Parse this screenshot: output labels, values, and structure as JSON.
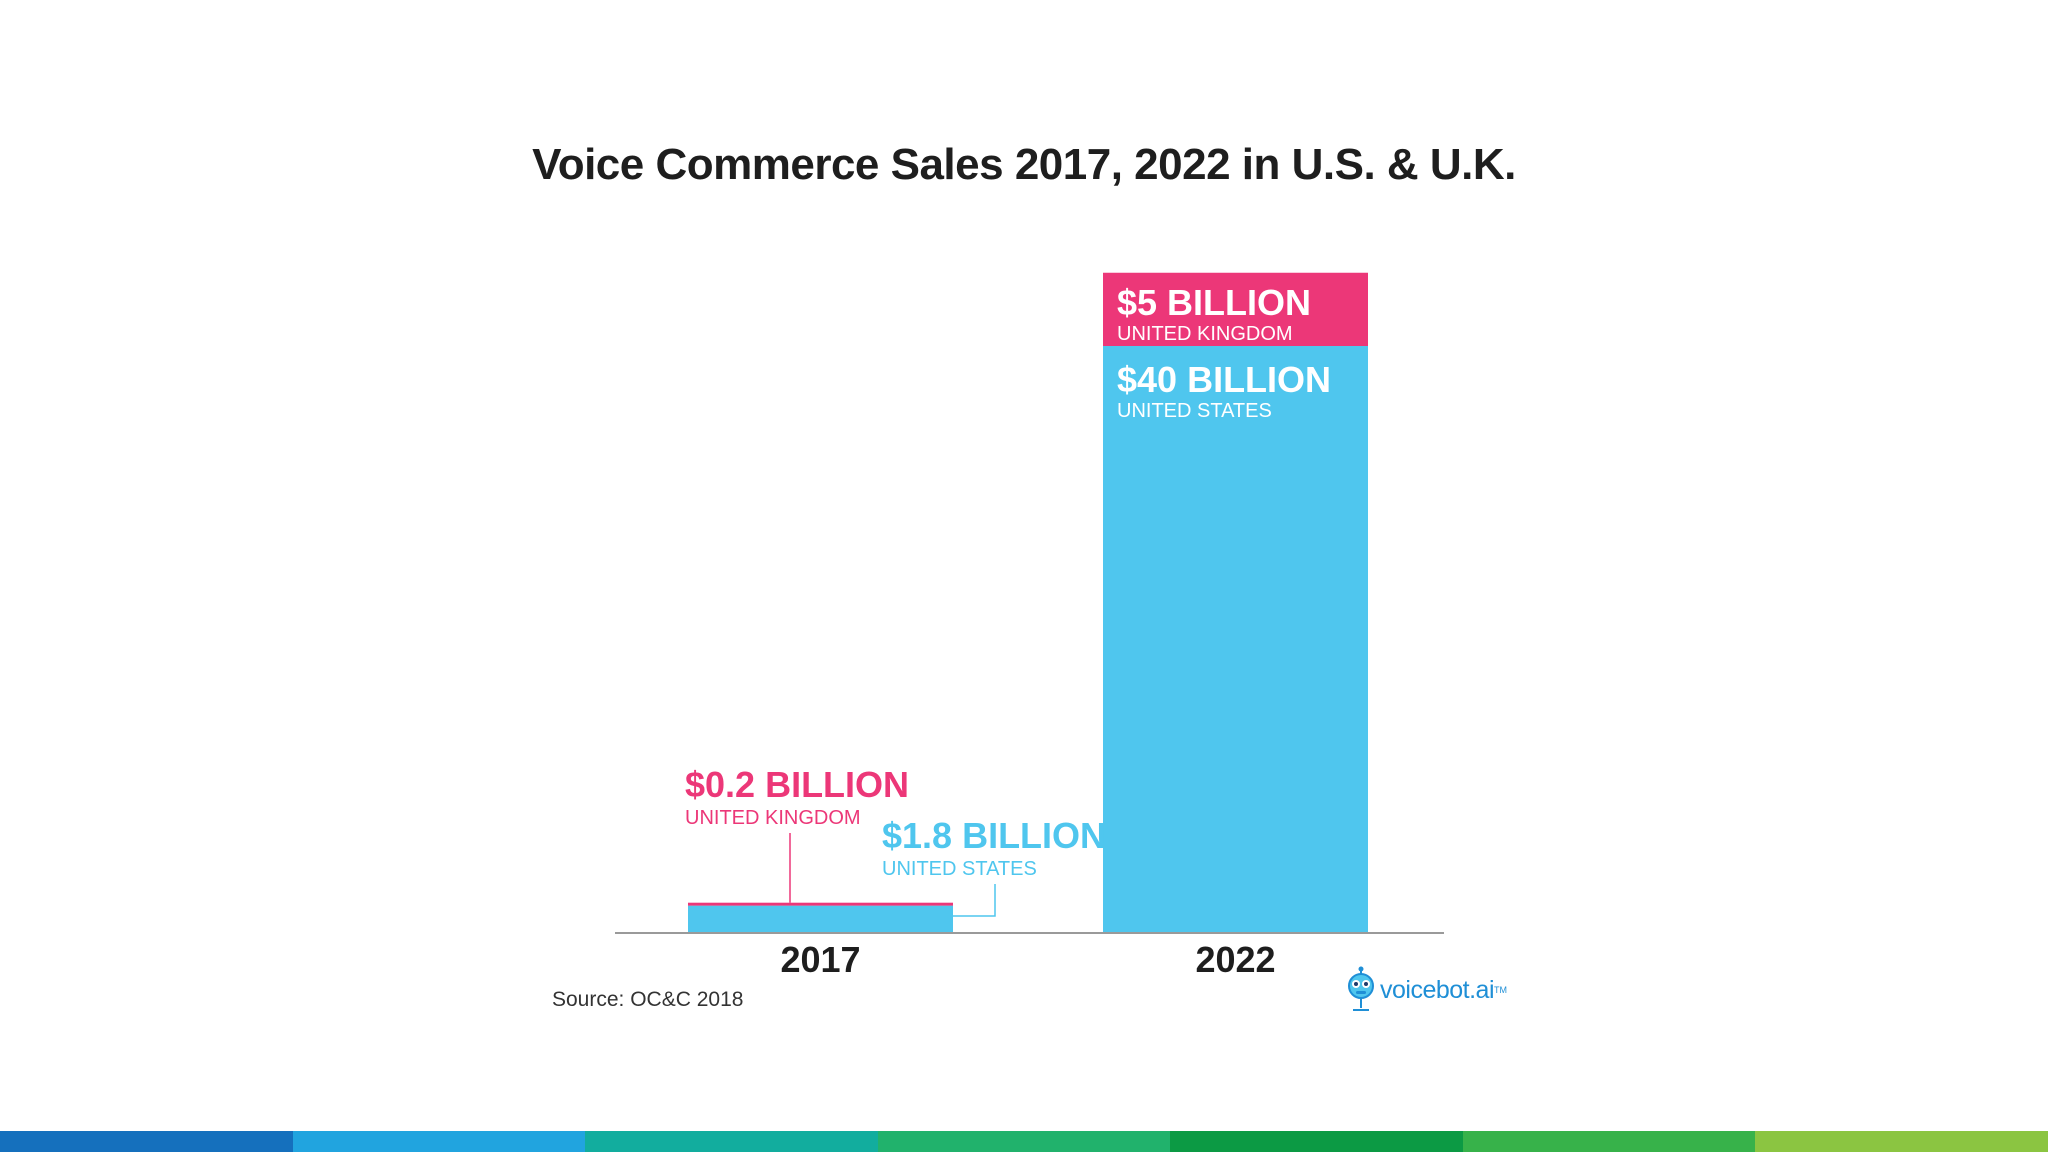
{
  "page": {
    "title": "Voice Commerce Sales 2017, 2022 in U.S. & U.K.",
    "source": "Source: OC&C 2018",
    "logo_text": "voicebot.ai",
    "logo_tm": "TM"
  },
  "colors": {
    "us": "#4fc6ee",
    "uk": "#ec3778",
    "axis": "#9a9a9a",
    "year_text": "#1e1e1e",
    "stripe": [
      "#1570bd",
      "#21a4df",
      "#12ad9e",
      "#21b26c",
      "#0c9a44",
      "#37b24a",
      "#8bc541"
    ]
  },
  "chart_data": {
    "type": "bar",
    "stacked": true,
    "categories": [
      "2017",
      "2022"
    ],
    "units": "billion USD",
    "series": [
      {
        "name": "UNITED STATES",
        "values": [
          1.8,
          40
        ],
        "labels": [
          "$1.8 BILLION",
          "$40 BILLION"
        ]
      },
      {
        "name": "UNITED KINGDOM",
        "values": [
          0.2,
          5
        ],
        "labels": [
          "$0.2 BILLION",
          "$5 BILLION"
        ]
      }
    ],
    "title": "Voice Commerce Sales 2017, 2022 in U.S. & U.K.",
    "xlabel": "",
    "ylabel": "",
    "ylim": [
      0,
      45
    ],
    "grid": false,
    "legend": "none"
  }
}
